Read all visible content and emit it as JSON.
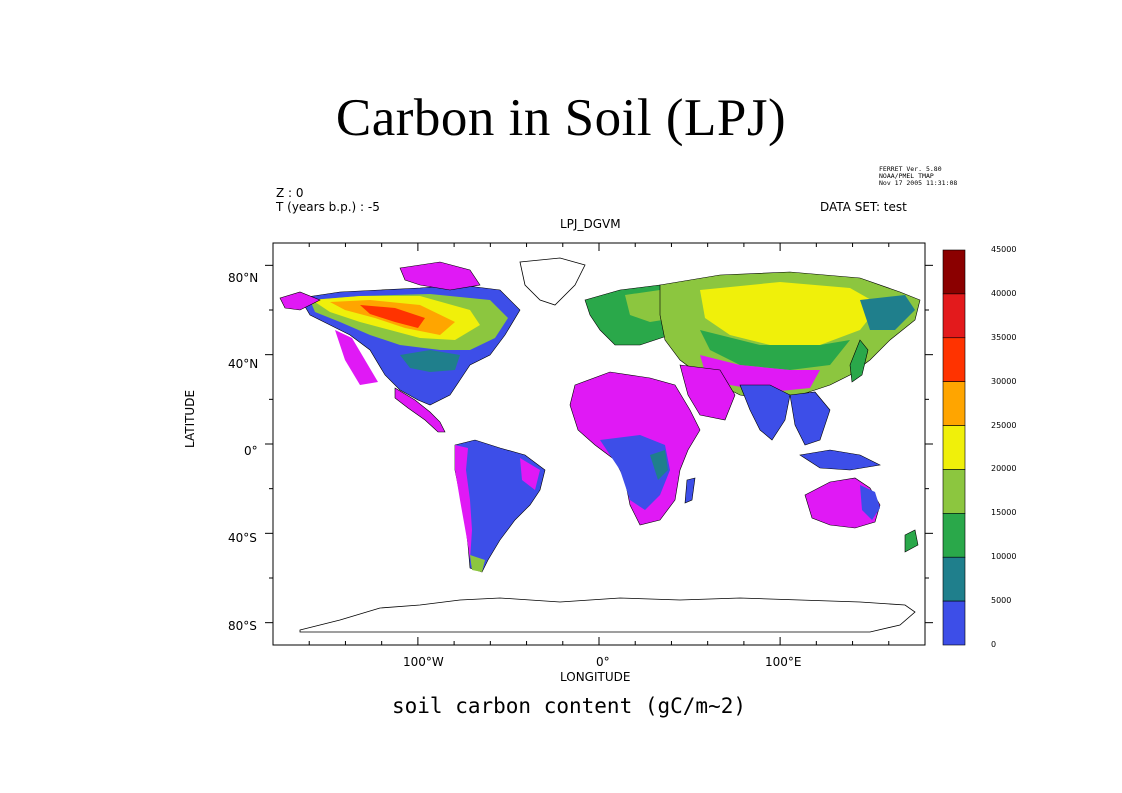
{
  "slide_title": "Carbon in Soil (LPJ)",
  "ferret_info": [
    "FERRET Ver. 5.80",
    "NOAA/PMEL TMAP",
    "Nov 17 2005 11:31:08"
  ],
  "header": {
    "z_label": "Z : 0",
    "t_label": "T (years b.p.) : -5",
    "dataset_label": "DATA SET: test",
    "plot_title": "LPJ_DGVM"
  },
  "axes": {
    "xlabel": "LONGITUDE",
    "ylabel": "LATITUDE",
    "x_ticks": [
      {
        "lon": -100,
        "label": "100°W"
      },
      {
        "lon": 0,
        "label": "0°"
      },
      {
        "lon": 100,
        "label": "100°E"
      }
    ],
    "y_ticks": [
      {
        "lat": 80,
        "label": "80°N"
      },
      {
        "lat": 40,
        "label": "40°N"
      },
      {
        "lat": 0,
        "label": "0°"
      },
      {
        "lat": -40,
        "label": "40°S"
      },
      {
        "lat": -80,
        "label": "80°S"
      }
    ],
    "lon_range": [
      -180,
      180
    ],
    "lat_range": [
      -90,
      90
    ]
  },
  "colorbar": {
    "levels": [
      "45000",
      "40000",
      "35000",
      "30000",
      "25000",
      "20000",
      "15000",
      "10000",
      "5000",
      "0"
    ],
    "colors": [
      "#8b0000",
      "#e31a1c",
      "#ff3300",
      "#ffa500",
      "#f0f00a",
      "#8cc63f",
      "#2aa84a",
      "#1f7f8c",
      "#3d4ee8",
      "#e019f5"
    ]
  },
  "caption": "soil carbon content (gC/m~2)",
  "map_legend_note": "",
  "map_colors": {
    "bare": "#e019f5",
    "c5k": "#3d4ee8",
    "c10k": "#1f7f8c",
    "c15k": "#2aa84a",
    "c20k": "#8cc63f",
    "c25k": "#f0f00a",
    "c30k": "#ffa500",
    "c35k": "#ff3300",
    "c40k": "#e31a1c"
  }
}
